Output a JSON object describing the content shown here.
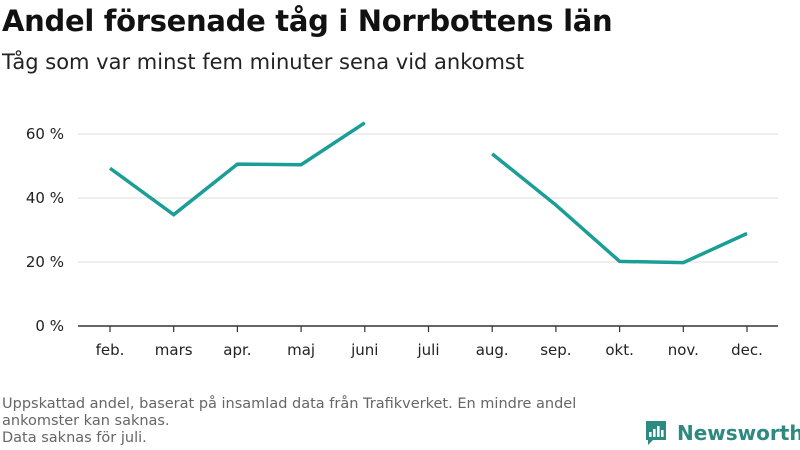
{
  "title": "Andel försenade tåg i Norrbottens län",
  "subtitle": "Tåg som var minst fem minuter sena vid ankomst",
  "footnote": {
    "line1": "Uppskattad andel, baserat på insamlad data från Trafikverket. En mindre andel",
    "line2": "ankomster kan saknas.",
    "line3": "Data saknas för juli."
  },
  "brand": {
    "name": "Newsworthy",
    "icon": "newsworthy-logo-icon",
    "color": "#2e8a7f"
  },
  "colors": {
    "line": "#1a9e96",
    "grid": "#dcdcdc",
    "axis": "#333333"
  },
  "chart_data": {
    "type": "line",
    "categories": [
      "feb.",
      "mars",
      "apr.",
      "maj",
      "juni",
      "juli",
      "aug.",
      "sep.",
      "okt.",
      "nov.",
      "dec."
    ],
    "values": [
      49.3,
      34.8,
      50.6,
      50.4,
      63.5,
      null,
      53.8,
      37.8,
      20.2,
      19.8,
      28.9
    ],
    "ylim": [
      0,
      60
    ],
    "yticks": [
      0,
      20,
      40,
      60
    ],
    "ytick_labels": [
      "0 %",
      "20 %",
      "40 %",
      "60 %"
    ],
    "grid": true,
    "xlabel": "",
    "ylabel": ""
  }
}
